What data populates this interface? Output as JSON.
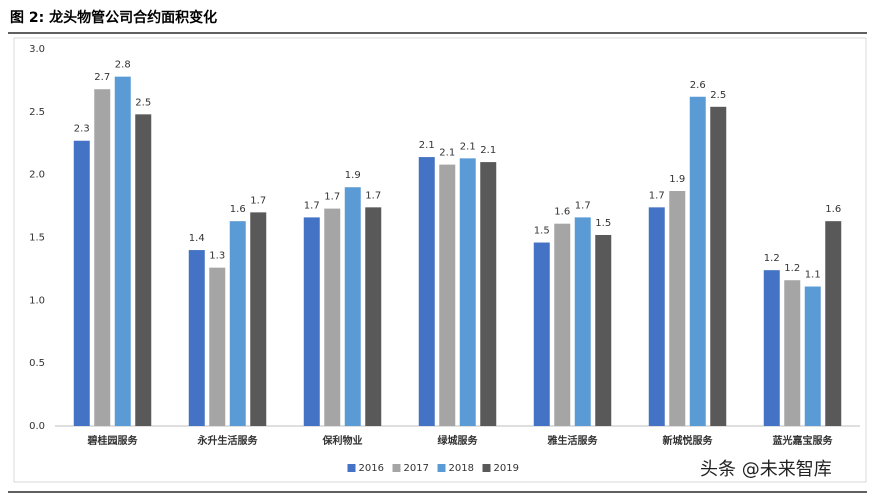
{
  "chart_data": {
    "type": "bar",
    "title": "图 2: 龙头物管公司合约面积变化",
    "categories": [
      "碧桂园服务",
      "永升生活服务",
      "保利物业",
      "绿城服务",
      "雅生活服务",
      "新城悦服务",
      "蓝光嘉宝服务"
    ],
    "series": [
      {
        "name": "2016",
        "color": "#4472c4",
        "values": [
          2.27,
          1.4,
          1.66,
          2.14,
          1.46,
          1.74,
          1.24
        ],
        "value_labels": [
          "2.3",
          "1.4",
          "1.7",
          "2.1",
          "1.5",
          "1.7",
          "1.2"
        ]
      },
      {
        "name": "2017",
        "color": "#a5a5a5",
        "values": [
          2.68,
          1.26,
          1.73,
          2.08,
          1.61,
          1.87,
          1.16
        ],
        "value_labels": [
          "2.7",
          "1.3",
          "1.7",
          "2.1",
          "1.6",
          "1.9",
          "1.2"
        ]
      },
      {
        "name": "2018",
        "color": "#5b9bd5",
        "values": [
          2.78,
          1.63,
          1.9,
          2.13,
          1.66,
          2.62,
          1.11
        ],
        "value_labels": [
          "2.8",
          "1.6",
          "1.9",
          "2.1",
          "1.7",
          "2.6",
          "1.1"
        ]
      },
      {
        "name": "2019",
        "color": "#595959",
        "values": [
          2.48,
          1.7,
          1.74,
          2.1,
          1.52,
          2.54,
          1.63
        ],
        "value_labels": [
          "2.5",
          "1.7",
          "1.7",
          "2.1",
          "1.5",
          "2.5",
          "1.6"
        ]
      }
    ],
    "ylim": [
      0,
      3
    ],
    "yticks": [
      {
        "value": 0,
        "label": "0.0"
      },
      0.5,
      {
        "value": 1,
        "label": "1.0"
      },
      1.5,
      {
        "value": 2,
        "label": "2.0"
      },
      2.5,
      {
        "value": 3,
        "label": "3.0"
      }
    ],
    "grid": false,
    "legend": "bottom",
    "watermark": "头条 @未来智库"
  }
}
